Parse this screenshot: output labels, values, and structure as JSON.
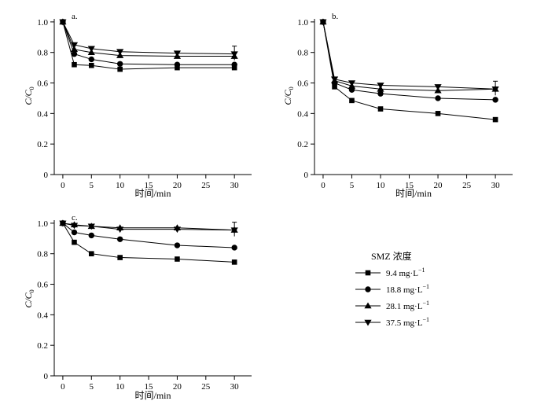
{
  "chart_data": [
    {
      "type": "line",
      "panel_label": "a.",
      "xlabel": "时间/min",
      "ylabel": "C/C0",
      "xlim": [
        -1.5,
        33
      ],
      "ylim": [
        0,
        1.02
      ],
      "xticks": [
        0,
        5,
        10,
        15,
        20,
        25,
        30
      ],
      "yticks": [
        0,
        0.2,
        0.4,
        0.6,
        0.8,
        1.0
      ],
      "show_xlabel": true,
      "x": [
        0,
        2,
        5,
        10,
        20,
        30
      ],
      "series": [
        {
          "name": "9.4 mg·L",
          "marker": "square",
          "values": [
            1.0,
            0.72,
            0.715,
            0.69,
            0.7,
            0.7
          ]
        },
        {
          "name": "18.8 mg·L",
          "marker": "circle",
          "values": [
            1.0,
            0.79,
            0.755,
            0.725,
            0.72,
            0.72
          ]
        },
        {
          "name": "28.1 mg·L",
          "marker": "triangle-up",
          "values": [
            1.0,
            0.82,
            0.8,
            0.78,
            0.775,
            0.775
          ]
        },
        {
          "name": "37.5 mg·L",
          "marker": "triangle-down",
          "values": [
            1.0,
            0.85,
            0.825,
            0.805,
            0.795,
            0.79
          ]
        }
      ]
    },
    {
      "type": "line",
      "panel_label": "b.",
      "xlabel": "时间/min",
      "ylabel": "C/C0",
      "xlim": [
        -1.5,
        33
      ],
      "ylim": [
        0,
        1.02
      ],
      "xticks": [
        0,
        5,
        10,
        15,
        20,
        25,
        30
      ],
      "yticks": [
        0,
        0.2,
        0.4,
        0.6,
        0.8,
        1.0
      ],
      "show_xlabel": true,
      "x": [
        0,
        2,
        5,
        10,
        20,
        30
      ],
      "series": [
        {
          "name": "9.4 mg·L",
          "marker": "square",
          "values": [
            1.0,
            0.575,
            0.485,
            0.43,
            0.4,
            0.36
          ]
        },
        {
          "name": "18.8 mg·L",
          "marker": "circle",
          "values": [
            1.0,
            0.6,
            0.555,
            0.53,
            0.5,
            0.49
          ]
        },
        {
          "name": "28.1 mg·L",
          "marker": "triangle-up",
          "values": [
            1.0,
            0.615,
            0.58,
            0.56,
            0.55,
            0.56
          ]
        },
        {
          "name": "37.5 mg·L",
          "marker": "triangle-down",
          "values": [
            1.0,
            0.625,
            0.6,
            0.585,
            0.575,
            0.56
          ]
        }
      ]
    },
    {
      "type": "line",
      "panel_label": "c.",
      "xlabel": "时间/min",
      "ylabel": "C/C0",
      "xlim": [
        -1.5,
        33
      ],
      "ylim": [
        0,
        1.02
      ],
      "xticks": [
        0,
        5,
        10,
        15,
        20,
        25,
        30
      ],
      "yticks": [
        0,
        0.2,
        0.4,
        0.6,
        0.8,
        1.0
      ],
      "show_xlabel": true,
      "x": [
        0,
        2,
        5,
        10,
        20,
        30
      ],
      "series": [
        {
          "name": "9.4 mg·L",
          "marker": "square",
          "values": [
            1.0,
            0.875,
            0.8,
            0.775,
            0.765,
            0.745
          ]
        },
        {
          "name": "18.8 mg·L",
          "marker": "circle",
          "values": [
            1.0,
            0.94,
            0.92,
            0.895,
            0.855,
            0.84
          ]
        },
        {
          "name": "28.1 mg·L",
          "marker": "triangle-up",
          "values": [
            1.0,
            0.99,
            0.98,
            0.97,
            0.97,
            0.955
          ]
        },
        {
          "name": "37.5 mg·L",
          "marker": "triangle-down",
          "values": [
            1.0,
            0.985,
            0.98,
            0.96,
            0.96,
            0.955
          ]
        }
      ]
    }
  ],
  "legend": {
    "title": "SMZ 浓度",
    "unit_superscript": "−1",
    "entries": [
      {
        "label": "9.4 mg·L",
        "marker": "square"
      },
      {
        "label": "18.8 mg·L",
        "marker": "circle"
      },
      {
        "label": "28.1 mg·L",
        "marker": "triangle-up"
      },
      {
        "label": "37.5 mg·L",
        "marker": "triangle-down"
      }
    ]
  },
  "colors": {
    "ink": "#000000",
    "background": "#ffffff"
  }
}
